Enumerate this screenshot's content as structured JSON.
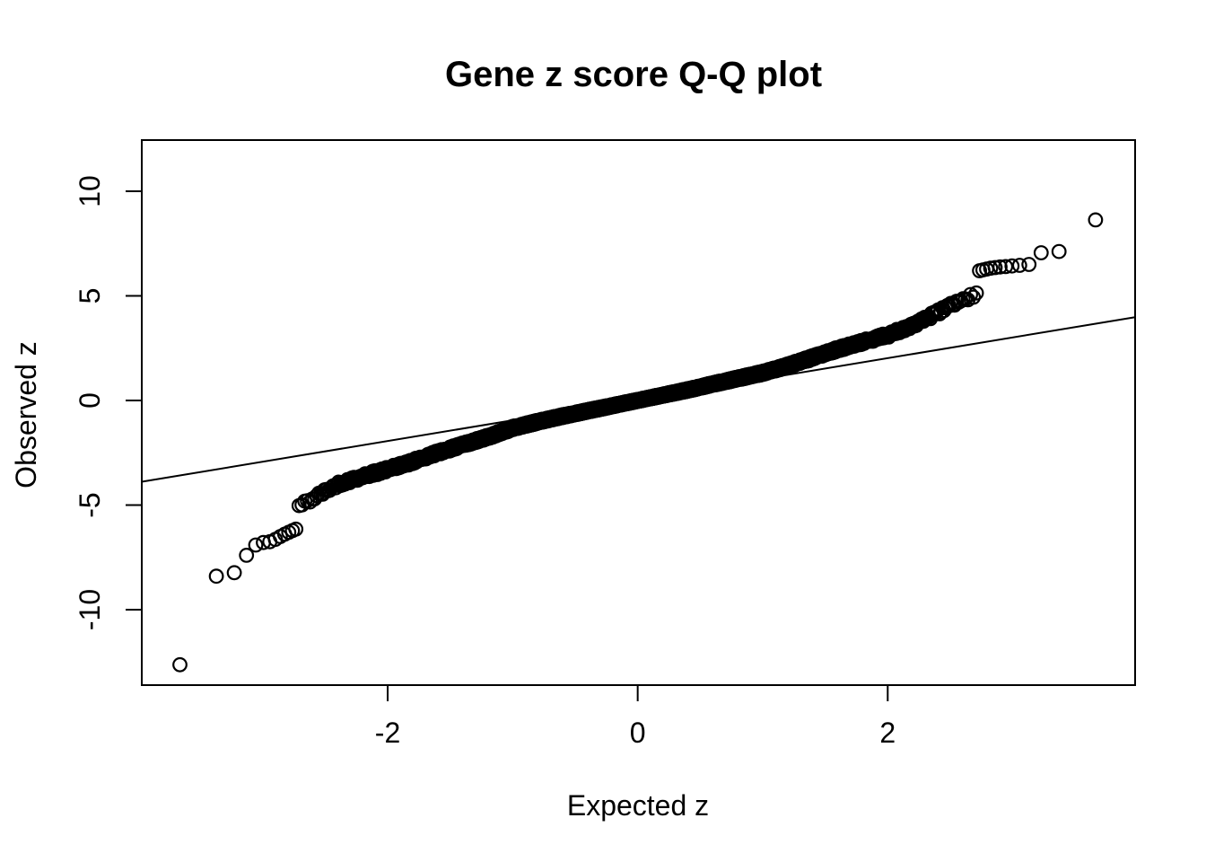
{
  "chart_data": {
    "type": "scatter",
    "variant": "qq-plot",
    "title": "Gene z score Q-Q plot",
    "xlabel": "Expected z",
    "ylabel": "Observed z",
    "x_ticks": [
      -2,
      0,
      2
    ],
    "x_tick_labels": [
      "-2",
      "0",
      "2"
    ],
    "y_ticks": [
      -10,
      -5,
      0,
      5,
      10
    ],
    "y_tick_labels": [
      "-10",
      "-5",
      "0",
      "5",
      "10"
    ],
    "xlim": [
      -3.967,
      3.979
    ],
    "ylim": [
      -13.605,
      12.446
    ],
    "grid": false,
    "legend": "none",
    "point_style": "open-circle",
    "point_color": "#000000",
    "line_color": "#000000",
    "background": "#ffffff",
    "n_points": 4000,
    "qq_line": {
      "x1": -3.967,
      "y1": -3.885,
      "x2": 3.979,
      "y2": 3.982
    },
    "curve_anchors": {
      "x": [
        -3.0,
        -2.8,
        -2.6,
        -2.4,
        -2.2,
        -2.0,
        -1.8,
        -1.6,
        -1.4,
        -1.2,
        -1.0,
        -0.8,
        -0.6,
        -0.4,
        -0.2,
        0.0,
        0.2,
        0.4,
        0.6,
        0.8,
        1.0,
        1.2,
        1.4,
        1.6,
        1.8,
        2.0,
        2.2,
        2.4,
        2.6,
        2.8,
        2.95
      ],
      "y": [
        -6.0,
        -5.35,
        -4.7,
        -4.0,
        -3.62,
        -3.3,
        -2.92,
        -2.5,
        -2.12,
        -1.75,
        -1.32,
        -1.02,
        -0.75,
        -0.5,
        -0.25,
        0.0,
        0.25,
        0.5,
        0.78,
        1.05,
        1.32,
        1.66,
        2.05,
        2.45,
        2.8,
        3.12,
        3.6,
        4.2,
        4.8,
        5.3,
        5.7
      ]
    },
    "lower_tail_observed": [
      -12.63,
      -8.4,
      -8.23,
      -7.4,
      -6.91,
      -6.79,
      -6.75,
      -6.64,
      -6.5,
      -6.39,
      -6.3,
      -6.22,
      -6.15
    ],
    "upper_tail_observed": [
      8.63,
      7.12,
      7.06,
      6.5,
      6.46,
      6.43,
      6.4,
      6.38,
      6.35,
      6.32,
      6.28,
      6.24,
      6.2
    ],
    "noise_sigma_base": 0.05
  }
}
